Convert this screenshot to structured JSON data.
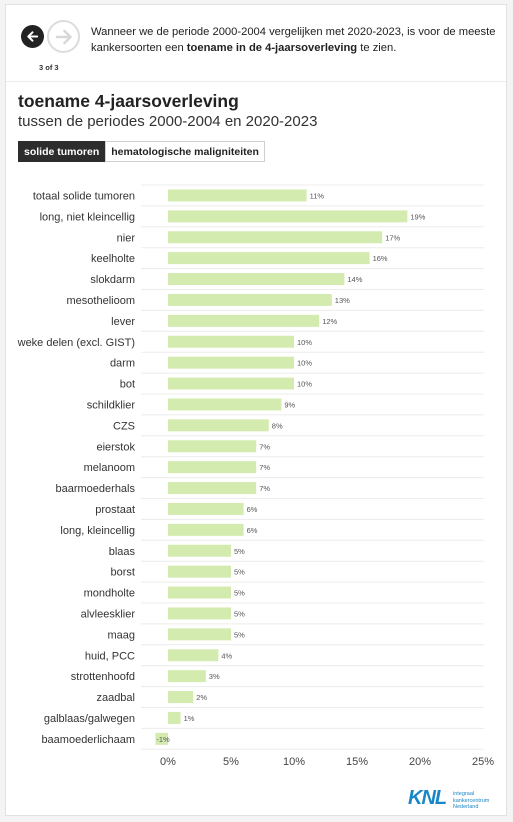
{
  "nav": {
    "step": "3 of 3",
    "prev_icon": "arrow-left-icon",
    "next_icon": "arrow-right-icon"
  },
  "intro": {
    "text_before": "Wanneer we de periode 2000-2004 vergelijken met 2020-2023, is voor de meeste kankersoorten een ",
    "text_bold": "toename in de 4-jaarsoverleving",
    "text_after": " te zien."
  },
  "tabs": [
    {
      "label": "solide tumoren",
      "active": true
    },
    {
      "label": "hematologische maligniteiten",
      "active": false
    }
  ],
  "logo": {
    "mark": "KNL",
    "line1": "integraal",
    "line2": "kankercentrum",
    "line3": "Nederland"
  },
  "colors": {
    "bar": "#d4ebb0",
    "grid": "#ececec",
    "accent": "#1a86c8"
  },
  "chart_data": {
    "type": "bar",
    "orientation": "horizontal",
    "title": "toename 4-jaarsoverleving",
    "subtitle": "tussen de periodes 2000-2004 en 2020-2023",
    "categories": [
      "totaal solide tumoren",
      "long, niet kleincellig",
      "nier",
      "keelholte",
      "slokdarm",
      "mesothelioom",
      "lever",
      "weke delen (excl. GIST)",
      "darm",
      "bot",
      "schildklier",
      "CZS",
      "eierstok",
      "melanoom",
      "baarmoederhals",
      "prostaat",
      "long, kleincellig",
      "blaas",
      "borst",
      "mondholte",
      "alvleesklier",
      "maag",
      "huid, PCC",
      "strottenhoofd",
      "zaadbal",
      "galblaas/galwegen",
      "baamoederlichaam"
    ],
    "values": [
      11,
      19,
      17,
      16,
      14,
      13,
      12,
      10,
      10,
      10,
      9,
      8,
      7,
      7,
      7,
      6,
      6,
      5,
      5,
      5,
      5,
      5,
      4,
      3,
      2,
      1,
      -1
    ],
    "value_labels": [
      "11%",
      "19%",
      "17%",
      "16%",
      "14%",
      "13%",
      "12%",
      "10%",
      "10%",
      "10%",
      "9%",
      "8%",
      "7%",
      "7%",
      "7%",
      "6%",
      "6%",
      "5%",
      "5%",
      "5%",
      "5%",
      "5%",
      "4%",
      "3%",
      "2%",
      "1%",
      "-1%"
    ],
    "xlim": [
      -1,
      25
    ],
    "xticks": [
      0,
      5,
      10,
      15,
      20,
      25
    ],
    "xtick_labels": [
      "0%",
      "5%",
      "10%",
      "15%",
      "20%",
      "25%"
    ],
    "grid": true,
    "legend": false
  }
}
